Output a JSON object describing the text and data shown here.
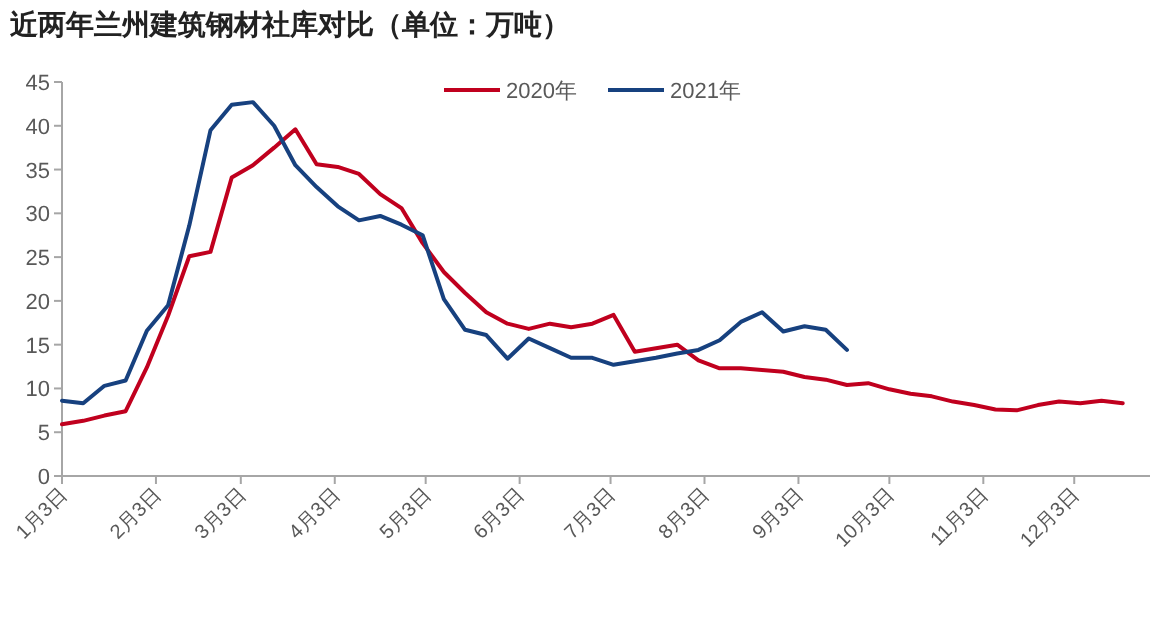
{
  "chart_data": {
    "type": "line",
    "title": "近两年兰州建筑钢材社库对比（单位：万吨）",
    "x": [
      "--01-03",
      "--01-10",
      "--01-17",
      "--01-24",
      "--01-31",
      "--02-07",
      "--02-14",
      "--02-21",
      "--02-28",
      "--03-07",
      "--03-14",
      "--03-21",
      "--03-28",
      "--04-04",
      "--04-11",
      "--04-18",
      "--04-25",
      "--05-02",
      "--05-09",
      "--05-16",
      "--05-23",
      "--05-30",
      "--06-06",
      "--06-13",
      "--06-20",
      "--06-27",
      "--07-04",
      "--07-11",
      "--07-18",
      "--07-25",
      "--08-01",
      "--08-08",
      "--08-15",
      "--08-22",
      "--08-29",
      "--09-05",
      "--09-12",
      "--09-19",
      "--09-26",
      "--10-03",
      "--10-10",
      "--10-17",
      "--10-24",
      "--10-31",
      "--11-07",
      "--11-14",
      "--11-21",
      "--11-28",
      "--12-05",
      "--12-12",
      "--12-19"
    ],
    "series": [
      {
        "name": "2020年",
        "color": "#c0001e",
        "values": [
          5.9,
          6.3,
          6.9,
          7.4,
          12.4,
          18.3,
          25.1,
          25.6,
          34.1,
          35.5,
          37.5,
          39.6,
          35.6,
          35.3,
          34.5,
          32.2,
          30.6,
          26.6,
          23.3,
          20.9,
          18.7,
          17.4,
          16.8,
          17.4,
          17.0,
          17.4,
          18.4,
          14.2,
          14.6,
          15.0,
          13.2,
          12.3,
          12.3,
          12.1,
          11.9,
          11.3,
          11.0,
          10.4,
          10.6,
          9.9,
          9.4,
          9.1,
          8.5,
          8.1,
          7.6,
          7.5,
          8.1,
          8.5,
          8.3,
          8.6,
          8.3
        ]
      },
      {
        "name": "2021年",
        "color": "#17417f",
        "x": [
          "--01-03",
          "--01-10",
          "--01-17",
          "--01-24",
          "--01-31",
          "--02-07",
          "--02-14",
          "--02-21",
          "--02-28",
          "--03-07",
          "--03-14",
          "--03-21",
          "--03-28",
          "--04-04",
          "--04-11",
          "--04-18",
          "--04-25",
          "--05-02",
          "--05-09",
          "--05-16",
          "--05-23",
          "--05-30",
          "--06-06",
          "--06-13",
          "--06-20",
          "--06-27",
          "--07-04",
          "--07-11",
          "--07-18",
          "--07-25",
          "--08-01",
          "--08-08",
          "--08-15",
          "--08-22",
          "--08-29",
          "--09-05",
          "--09-12",
          "--09-19"
        ],
        "values": [
          8.6,
          8.3,
          10.3,
          10.9,
          16.6,
          19.5,
          28.6,
          39.5,
          42.4,
          42.7,
          40.0,
          35.5,
          33.0,
          30.8,
          29.2,
          29.7,
          28.7,
          27.5,
          20.2,
          16.7,
          16.1,
          13.4,
          15.7,
          14.6,
          13.5,
          13.5,
          12.7,
          13.1,
          13.5,
          14.0,
          14.4,
          15.5,
          17.6,
          18.7,
          16.5,
          17.1,
          16.7,
          14.4
        ]
      }
    ],
    "xlim": [
      "--01-03",
      "--12-28"
    ],
    "xticks": [
      {
        "value": "--01-03",
        "label": "1月3日"
      },
      {
        "value": "--02-03",
        "label": "2月3日"
      },
      {
        "value": "--03-03",
        "label": "3月3日"
      },
      {
        "value": "--04-03",
        "label": "4月3日"
      },
      {
        "value": "--05-03",
        "label": "5月3日"
      },
      {
        "value": "--06-03",
        "label": "6月3日"
      },
      {
        "value": "--07-03",
        "label": "7月3日"
      },
      {
        "value": "--08-03",
        "label": "8月3日"
      },
      {
        "value": "--09-03",
        "label": "9月3日"
      },
      {
        "value": "--10-03",
        "label": "10月3日"
      },
      {
        "value": "--11-03",
        "label": "11月3日"
      },
      {
        "value": "--12-03",
        "label": "12月3日"
      }
    ],
    "ylim": [
      0,
      45
    ],
    "yticks": [
      0,
      5,
      10,
      15,
      20,
      25,
      30,
      35,
      40,
      45
    ],
    "grid": false,
    "legend": "top",
    "marker": "none",
    "line_style": "solid"
  }
}
